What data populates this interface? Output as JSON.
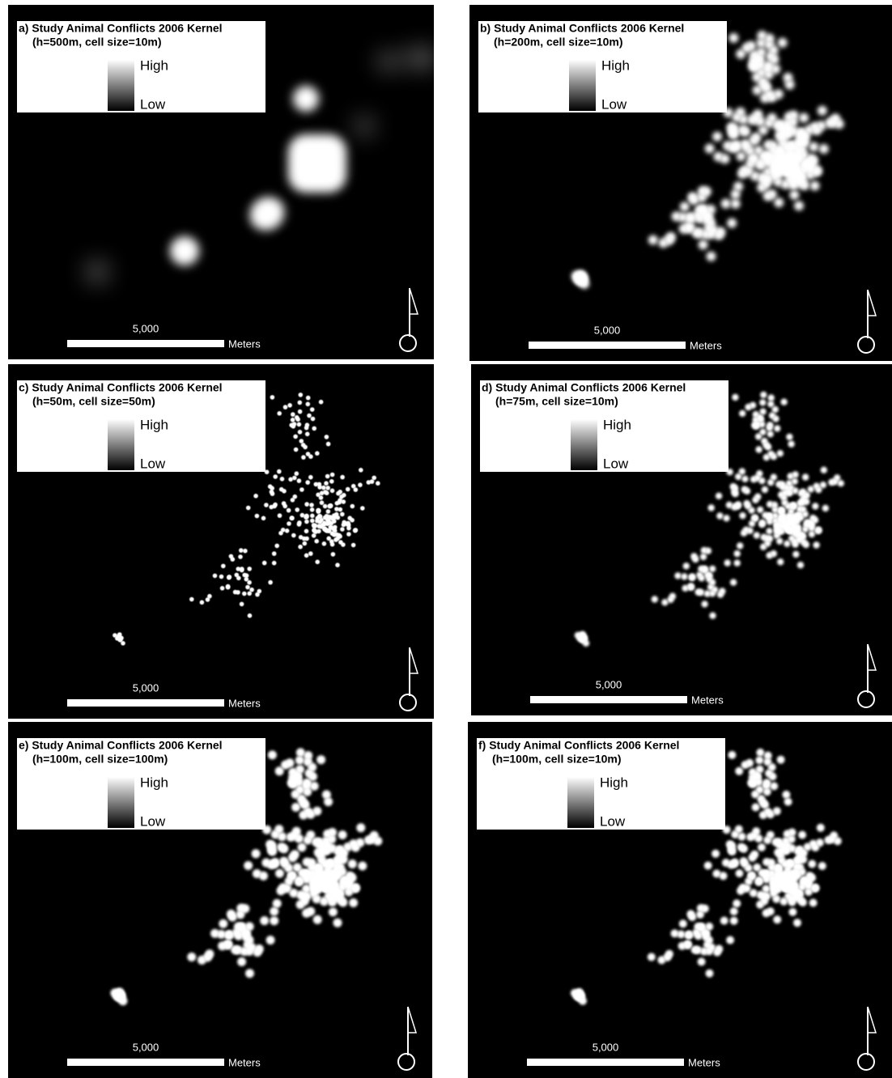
{
  "panels": [
    {
      "title": "a) Study Animal Conflicts 2006 Kernel",
      "subtitle": "(h=500m, cell size=10m)",
      "legend_high": "High",
      "legend_low": "Low",
      "scale_value": "5,000",
      "scale_unit": "Meters"
    },
    {
      "title": "b) Study Animal Conflicts 2006 Kernel",
      "subtitle": "(h=200m, cell size=10m)",
      "legend_high": "High",
      "legend_low": "Low",
      "scale_value": "5,000",
      "scale_unit": "Meters"
    },
    {
      "title": "c)  Study Animal Conflicts 2006 Kernel",
      "subtitle": "(h=50m, cell size=50m)",
      "legend_high": "High",
      "legend_low": "Low",
      "scale_value": "5,000",
      "scale_unit": "Meters"
    },
    {
      "title": "d) Study Animal Conflicts 2006 Kernel",
      "subtitle": "(h=75m, cell size=10m)",
      "legend_high": "High",
      "legend_low": "Low",
      "scale_value": "5,000",
      "scale_unit": "Meters"
    },
    {
      "title": "e)  Study Animal Conflicts 2006 Kernel",
      "subtitle": "(h=100m, cell size=100m)",
      "legend_high": "High",
      "legend_low": "Low",
      "scale_value": "5,000",
      "scale_unit": "Meters"
    },
    {
      "title": "f) Study Animal Conflicts 2006 Kernel",
      "subtitle": "(h=100m, cell size=10m)",
      "legend_high": "High",
      "legend_low": "Low",
      "scale_value": "5,000",
      "scale_unit": "Meters"
    }
  ]
}
